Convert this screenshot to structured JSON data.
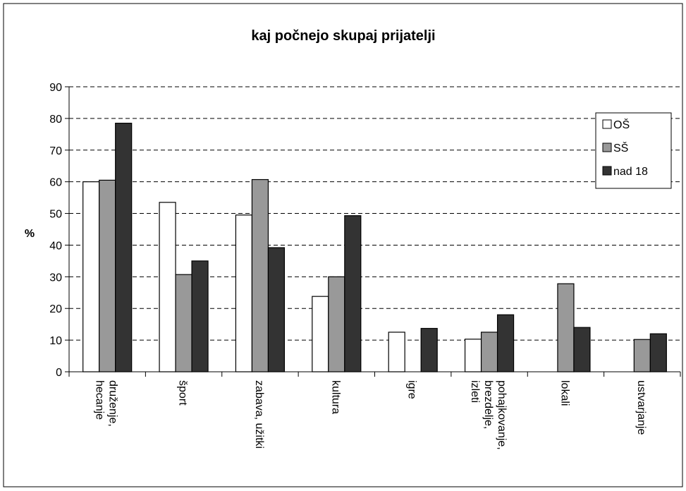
{
  "chart_data": {
    "type": "bar",
    "title": "kaj počnejo skupaj prijatelji",
    "y_label": "%",
    "categories": [
      "druženje, hecanje",
      "šport",
      "zabava, užitki",
      "kultura",
      "igre",
      "pohajkovanje, brezdelje, izleti",
      "lokali",
      "ustvarjanje"
    ],
    "series": [
      {
        "name": "OŠ",
        "color": "#ffffff",
        "values": [
          60,
          53.5,
          49.5,
          23.8,
          12.5,
          10.3,
          null,
          null
        ]
      },
      {
        "name": "SŠ",
        "color": "#999999",
        "values": [
          60.5,
          30.7,
          60.7,
          30,
          null,
          12.5,
          27.8,
          10.2
        ]
      },
      {
        "name": "nad 18",
        "color": "#333333",
        "values": [
          78.5,
          35,
          39.2,
          49.3,
          13.7,
          18,
          14,
          12
        ]
      }
    ],
    "ylim": [
      0,
      90
    ],
    "yticks": [
      0,
      10,
      20,
      30,
      40,
      50,
      60,
      70,
      80,
      90
    ],
    "grid": true,
    "legend": "top-right"
  }
}
